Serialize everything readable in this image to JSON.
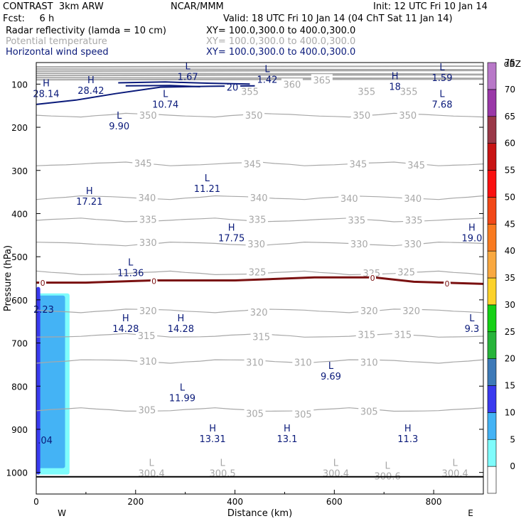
{
  "header": {
    "line1_left": "CONTRAST  3km ARW",
    "line1_mid": "NCAR/MMM",
    "line1_right": "Init: 12 UTC Fri 10 Jan 14",
    "line2_left": "Fcst:     6 h",
    "line2_right": "Valid: 18 UTC Fri 10 Jan 14 (04 ChT Sat 11 Jan 14)",
    "field1_name": "Radar reflectivity (lamda = 10 cm)",
    "field1_xy": "XY= 100.0,300.0 to 400.0,300.0",
    "field2_name": "Potential temperature",
    "field2_xy": "XY= 100.0,300.0 to 400.0,300.0",
    "field3_name": "Horizontal wind speed",
    "field3_xy": "XY= 100.0,300.0 to 400.0,300.0"
  },
  "colors": {
    "theta": "#a8a8a8",
    "wind": "#0a1a7a",
    "freezing_line": "#7a1010",
    "hl_labels": "#0a1a7a"
  },
  "chart_data": {
    "type": "heatmap",
    "xlabel": "Distance (km)",
    "ylabel": "Pressure (hPa)",
    "xlim": [
      0,
      900
    ],
    "ylim": [
      1050,
      50
    ],
    "x_ticks": [
      0,
      200,
      400,
      600,
      800
    ],
    "y_ticks": [
      100,
      200,
      300,
      400,
      500,
      600,
      700,
      800,
      900,
      1000
    ],
    "x_end_labels": {
      "left": "W",
      "right": "E"
    },
    "colorbar": {
      "unit": "dBZ",
      "levels": [
        0,
        5,
        10,
        15,
        20,
        25,
        30,
        35,
        40,
        45,
        50,
        55,
        60,
        65,
        70,
        75
      ],
      "colors": [
        "#ffffff",
        "#7ffcfc",
        "#44b3f5",
        "#3a3aef",
        "#3e7ab8",
        "#27b43a",
        "#15d115",
        "#fcd22a",
        "#f9a840",
        "#f97a20",
        "#f24818",
        "#fa1010",
        "#c81414",
        "#9a3848",
        "#9a38a8",
        "#b878c8"
      ]
    },
    "reflectivity_regions": [
      {
        "level": 5,
        "x_range": [
          0,
          67
        ],
        "p_range": [
          585,
          1005
        ]
      },
      {
        "level": 10,
        "x_range": [
          0,
          58
        ],
        "p_range": [
          590,
          990
        ]
      },
      {
        "level": 15,
        "x_range": [
          0,
          8
        ],
        "p_range": [
          570,
          1005
        ]
      }
    ],
    "theta_isentropes": [
      {
        "value": 350,
        "p": 172
      },
      {
        "value": 345,
        "p": 285
      },
      {
        "value": 340,
        "p": 363
      },
      {
        "value": 335,
        "p": 415
      },
      {
        "value": 330,
        "p": 470
      },
      {
        "value": 325,
        "p": 538
      },
      {
        "value": 320,
        "p": 625
      },
      {
        "value": 315,
        "p": 683
      },
      {
        "value": 310,
        "p": 742
      },
      {
        "value": 305,
        "p": 855
      }
    ],
    "theta_labels": [
      {
        "text": "365",
        "x": 575,
        "p": 90
      },
      {
        "text": "360",
        "x": 515,
        "p": 100
      },
      {
        "text": "355",
        "x": 430,
        "p": 117
      },
      {
        "text": "355",
        "x": 665,
        "p": 117
      },
      {
        "text": "355",
        "x": 750,
        "p": 117
      },
      {
        "text": "350",
        "x": 225,
        "p": 172
      },
      {
        "text": "350",
        "x": 438,
        "p": 172
      },
      {
        "text": "350",
        "x": 655,
        "p": 172
      },
      {
        "text": "350",
        "x": 748,
        "p": 172
      },
      {
        "text": "345",
        "x": 215,
        "p": 283
      },
      {
        "text": "345",
        "x": 435,
        "p": 285
      },
      {
        "text": "345",
        "x": 648,
        "p": 285
      },
      {
        "text": "345",
        "x": 765,
        "p": 287
      },
      {
        "text": "340",
        "x": 223,
        "p": 363
      },
      {
        "text": "340",
        "x": 448,
        "p": 363
      },
      {
        "text": "340",
        "x": 630,
        "p": 365
      },
      {
        "text": "340",
        "x": 758,
        "p": 365
      },
      {
        "text": "335",
        "x": 225,
        "p": 413
      },
      {
        "text": "335",
        "x": 445,
        "p": 413
      },
      {
        "text": "335",
        "x": 645,
        "p": 415
      },
      {
        "text": "335",
        "x": 760,
        "p": 415
      },
      {
        "text": "330",
        "x": 225,
        "p": 467
      },
      {
        "text": "330",
        "x": 443,
        "p": 470
      },
      {
        "text": "330",
        "x": 650,
        "p": 470
      },
      {
        "text": "330",
        "x": 758,
        "p": 470
      },
      {
        "text": "325",
        "x": 445,
        "p": 535
      },
      {
        "text": "325",
        "x": 675,
        "p": 538
      },
      {
        "text": "325",
        "x": 745,
        "p": 535
      },
      {
        "text": "320",
        "x": 225,
        "p": 625
      },
      {
        "text": "320",
        "x": 448,
        "p": 628
      },
      {
        "text": "320",
        "x": 670,
        "p": 625
      },
      {
        "text": "320",
        "x": 755,
        "p": 625
      },
      {
        "text": "315",
        "x": 222,
        "p": 683
      },
      {
        "text": "315",
        "x": 453,
        "p": 685
      },
      {
        "text": "315",
        "x": 665,
        "p": 680
      },
      {
        "text": "315",
        "x": 738,
        "p": 680
      },
      {
        "text": "310",
        "x": 225,
        "p": 742
      },
      {
        "text": "310",
        "x": 440,
        "p": 744
      },
      {
        "text": "310",
        "x": 537,
        "p": 744
      },
      {
        "text": "310",
        "x": 670,
        "p": 744
      },
      {
        "text": "305",
        "x": 223,
        "p": 855
      },
      {
        "text": "305",
        "x": 440,
        "p": 863
      },
      {
        "text": "305",
        "x": 537,
        "p": 865
      },
      {
        "text": "305",
        "x": 670,
        "p": 858
      }
    ],
    "freezing_level": [
      {
        "x": 0,
        "p": 560
      },
      {
        "x": 100,
        "p": 560
      },
      {
        "x": 235,
        "p": 555
      },
      {
        "x": 400,
        "p": 555
      },
      {
        "x": 560,
        "p": 548
      },
      {
        "x": 680,
        "p": 548
      },
      {
        "x": 760,
        "p": 558
      },
      {
        "x": 900,
        "p": 563
      }
    ],
    "freezing_markers": [
      {
        "x": 13,
        "p": 561
      },
      {
        "x": 237,
        "p": 557
      },
      {
        "x": 677,
        "p": 549
      },
      {
        "x": 827,
        "p": 562
      }
    ],
    "freezing_marker_label": "0",
    "wind_contours": [
      {
        "value": 20,
        "label": "20",
        "label_x": 395,
        "label_p": 107,
        "points": [
          {
            "x": 0,
            "p": 147
          },
          {
            "x": 80,
            "p": 137
          },
          {
            "x": 160,
            "p": 122
          },
          {
            "x": 250,
            "p": 107
          },
          {
            "x": 350,
            "p": 105
          },
          {
            "x": 440,
            "p": 104
          }
        ]
      },
      {
        "value": 20,
        "label": "",
        "label_x": 0,
        "label_p": 0,
        "points": [
          {
            "x": 165,
            "p": 97
          },
          {
            "x": 260,
            "p": 95
          },
          {
            "x": 350,
            "p": 98
          },
          {
            "x": 430,
            "p": 100
          }
        ]
      },
      {
        "value": 20,
        "label": "",
        "label_x": 0,
        "label_p": 0,
        "points": [
          {
            "x": 180,
            "p": 104
          },
          {
            "x": 270,
            "p": 103
          },
          {
            "x": 330,
            "p": 106
          }
        ]
      }
    ],
    "hl_labels": [
      {
        "letter": "H",
        "value": "28.14",
        "x": 20,
        "p": 105
      },
      {
        "letter": "H",
        "value": "28.42",
        "x": 110,
        "p": 98
      },
      {
        "letter": "L",
        "value": "1.67",
        "x": 305,
        "p": 66
      },
      {
        "letter": "L",
        "value": "1.42",
        "x": 465,
        "p": 72
      },
      {
        "letter": "H",
        "value": "18",
        "x": 722,
        "p": 89
      },
      {
        "letter": "L",
        "value": "1.59",
        "x": 817,
        "p": 68
      },
      {
        "letter": "L",
        "value": "10.74",
        "x": 260,
        "p": 130
      },
      {
        "letter": "L",
        "value": "7.68",
        "x": 817,
        "p": 130
      },
      {
        "letter": "L",
        "value": "9.90",
        "x": 167,
        "p": 180
      },
      {
        "letter": "H",
        "value": "17.21",
        "x": 107,
        "p": 355
      },
      {
        "letter": "L",
        "value": "11.21",
        "x": 344,
        "p": 325
      },
      {
        "letter": "H",
        "value": "17.75",
        "x": 393,
        "p": 440
      },
      {
        "letter": "H",
        "value": "19.0",
        "x": 877,
        "p": 440
      },
      {
        "letter": "L",
        "value": "11.36",
        "x": 190,
        "p": 520
      },
      {
        "letter": "",
        "value": "2.23",
        "x": 15,
        "p": 605
      },
      {
        "letter": "H",
        "value": "14.28",
        "x": 180,
        "p": 650
      },
      {
        "letter": "H",
        "value": "14.28",
        "x": 291,
        "p": 650
      },
      {
        "letter": "L",
        "value": "9.3",
        "x": 877,
        "p": 650
      },
      {
        "letter": "L",
        "value": "9.69",
        "x": 593,
        "p": 760
      },
      {
        "letter": "L",
        "value": "11.99",
        "x": 294,
        "p": 810
      },
      {
        "letter": "H",
        "value": "13.31",
        "x": 355,
        "p": 905
      },
      {
        "letter": "H",
        "value": "13.1",
        "x": 505,
        "p": 905
      },
      {
        "letter": "H",
        "value": "11.3",
        "x": 748,
        "p": 905
      },
      {
        "letter": "",
        "value": ".04",
        "x": 18,
        "p": 908
      }
    ],
    "theta_min_labels": [
      {
        "letter": "L",
        "value": "300.4",
        "x": 232,
        "p": 988
      },
      {
        "letter": "L",
        "value": "300.5",
        "x": 375,
        "p": 988
      },
      {
        "letter": "L",
        "value": "300.4",
        "x": 603,
        "p": 988
      },
      {
        "letter": "L",
        "value": "300.6",
        "x": 707,
        "p": 995
      },
      {
        "letter": "L",
        "value": "300.4",
        "x": 843,
        "p": 988
      }
    ],
    "stratosphere_bands_p": [
      60,
      65,
      70,
      75,
      80,
      85,
      90
    ]
  }
}
